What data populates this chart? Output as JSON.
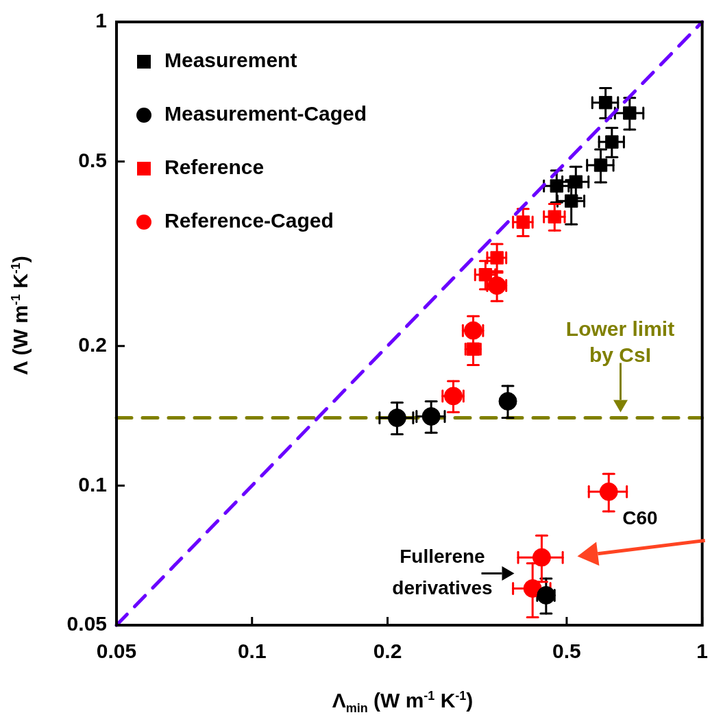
{
  "chart_data": {
    "type": "scatter",
    "xlabel": "Λ$_{min}$ (W m$^{-1}$ K$^{-1}$)",
    "ylabel": "Λ (W m$^{-1}$ K$^{-1}$)",
    "log": "xy",
    "grid": false,
    "legend": "top left",
    "xlim": [
      0.05,
      1
    ],
    "xticks": [
      0.05,
      0.1,
      0.2,
      0.5,
      1
    ],
    "ylim": [
      0.05,
      1
    ],
    "yticks": [
      0.05,
      0.1,
      0.2,
      0.5,
      1
    ],
    "series": [
      {
        "name": "Measurement",
        "color": "#000000",
        "marker": "square",
        "x": [
          0.61,
          0.69,
          0.63,
          0.595,
          0.475,
          0.524,
          0.512
        ],
        "values": [
          0.67,
          0.636,
          0.551,
          0.491,
          0.443,
          0.452,
          0.411
        ],
        "errors": [
          0.05,
          0.05,
          0.04,
          0.04,
          0.035,
          0.035,
          0.045
        ],
        "xerrors": [
          0.04,
          0.05,
          0.04,
          0.04,
          0.03,
          0.035,
          0.035
        ]
      },
      {
        "name": "Measurement-Caged",
        "color": "#000000",
        "marker": "circle",
        "x": [
          0.21,
          0.25,
          0.37,
          0.45
        ],
        "values": [
          0.14,
          0.141,
          0.152,
          0.058
        ],
        "errors": [
          0.011,
          0.011,
          0.012,
          0.005
        ],
        "xerrors": [
          0.018,
          0.018,
          0.01,
          0.02
        ]
      },
      {
        "name": "Reference",
        "color": "#ff0000",
        "marker": "square",
        "x": [
          0.4,
          0.47,
          0.35,
          0.33,
          0.31
        ],
        "values": [
          0.37,
          0.38,
          0.31,
          0.285,
          0.197
        ],
        "errors": [
          0.025,
          0.025,
          0.022,
          0.02,
          0.015
        ],
        "xerrors": [
          0.02,
          0.025,
          0.017,
          0.017,
          0.012
        ]
      },
      {
        "name": "Reference-Caged",
        "color": "#ff0000",
        "marker": "circle",
        "x": [
          0.35,
          0.31,
          0.28,
          0.62,
          0.44,
          0.42
        ],
        "values": [
          0.27,
          0.216,
          0.156,
          0.097,
          0.07,
          0.06
        ],
        "errors": [
          0.02,
          0.016,
          0.012,
          0.009,
          0.008,
          0.008
        ],
        "xerrors": [
          0.017,
          0.016,
          0.015,
          0.06,
          0.05,
          0.04
        ]
      },
      {
        "type": "line",
        "color": "#6a00ff",
        "line_style": "dashed",
        "x": [
          0.05,
          1
        ],
        "values": [
          0.05,
          1
        ]
      }
    ],
    "ref_lines": [
      {
        "axis": "y",
        "value": 0.14,
        "label": "Lower limit by CsI",
        "color": "#808000",
        "line_style": "dashed"
      }
    ],
    "annotations": [
      {
        "text": "C60",
        "x": 0.62,
        "y": 0.097
      },
      {
        "text": "Fullerene derivatives",
        "x": 0.44,
        "y": 0.07
      }
    ]
  }
}
